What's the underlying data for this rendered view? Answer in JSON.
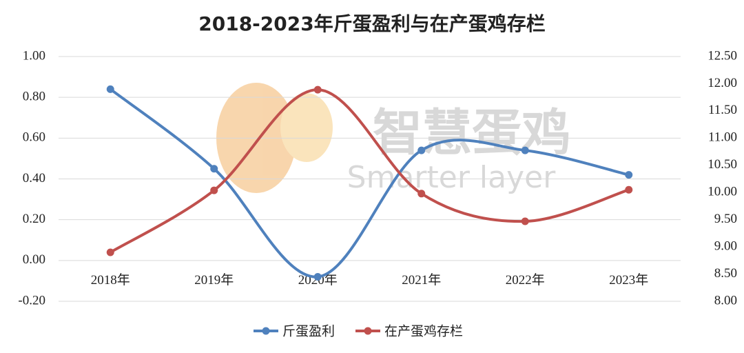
{
  "chart_data": {
    "type": "line",
    "title": "2018-2023年斤蛋盈利与在产蛋鸡存栏",
    "categories": [
      "2018年",
      "2019年",
      "2020年",
      "2021年",
      "2022年",
      "2023年"
    ],
    "series": [
      {
        "name": "斤蛋盈利",
        "color": "#4f81bd",
        "values": [
          0.84,
          0.45,
          -0.08,
          0.54,
          0.54,
          0.42
        ]
      },
      {
        "name": "在产蛋鸡存栏",
        "color": "#c0504d",
        "axis": "y2",
        "values": [
          8.9,
          10.04,
          11.89,
          9.98,
          9.47,
          10.05
        ]
      }
    ],
    "ylim": [
      -0.2,
      1.0
    ],
    "yticks": [
      {
        "value": -0.2,
        "label": "-0.20"
      },
      {
        "value": 0,
        "label": "0.00"
      },
      {
        "value": 0.2,
        "label": "0.20"
      },
      {
        "value": 0.4,
        "label": "0.40"
      },
      {
        "value": 0.6,
        "label": "0.60"
      },
      {
        "value": 0.8,
        "label": "0.80"
      },
      {
        "value": 1.0,
        "label": "1.00"
      }
    ],
    "y2lim": [
      8.0,
      12.5
    ],
    "y2ticks": [
      {
        "value": 8.0,
        "label": "8.00"
      },
      {
        "value": 8.5,
        "label": "8.50"
      },
      {
        "value": 9.0,
        "label": "9.00"
      },
      {
        "value": 9.5,
        "label": "9.50"
      },
      {
        "value": 10.0,
        "label": "10.00"
      },
      {
        "value": 10.5,
        "label": "10.50"
      },
      {
        "value": 11.0,
        "label": "11.00"
      },
      {
        "value": 11.5,
        "label": "11.50"
      },
      {
        "value": 12.0,
        "label": "12.00"
      },
      {
        "value": 12.5,
        "label": "12.50"
      }
    ],
    "grid": true,
    "smooth": true,
    "legend": "bottom"
  },
  "watermark": [
    "智慧蛋鸡",
    "Smarter layer"
  ]
}
